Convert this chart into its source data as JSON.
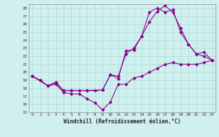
{
  "bg_color": "#cff0ee",
  "line_color": "#8b008b",
  "grid_color": "#b0ddd8",
  "xlim": [
    -0.5,
    23.5
  ],
  "ylim": [
    15,
    28.5
  ],
  "yticks": [
    15,
    16,
    17,
    18,
    19,
    20,
    21,
    22,
    23,
    24,
    25,
    26,
    27,
    28
  ],
  "xticks": [
    0,
    1,
    2,
    3,
    4,
    5,
    6,
    7,
    8,
    9,
    10,
    11,
    12,
    13,
    14,
    15,
    16,
    17,
    18,
    19,
    20,
    21,
    22,
    23
  ],
  "xlabel": "Windchill (Refroidissement éolien,°C)",
  "line1_x": [
    0,
    1,
    2,
    3,
    4,
    5,
    6,
    7,
    8,
    9,
    10,
    11,
    12,
    13,
    14,
    15,
    16,
    17,
    18,
    19,
    20,
    21,
    22,
    23
  ],
  "line1_y": [
    19.5,
    19.0,
    18.3,
    18.5,
    17.5,
    17.3,
    17.3,
    16.7,
    16.2,
    15.3,
    16.3,
    18.5,
    18.5,
    19.3,
    19.5,
    20.0,
    20.5,
    21.0,
    21.2,
    21.0,
    21.0,
    21.0,
    21.2,
    21.5
  ],
  "line2_x": [
    0,
    1,
    2,
    3,
    4,
    5,
    6,
    7,
    8,
    9,
    10,
    11,
    12,
    13,
    14,
    15,
    16,
    17,
    18,
    19,
    20,
    21,
    22,
    23
  ],
  "line2_y": [
    19.5,
    19.0,
    18.3,
    18.7,
    17.7,
    17.7,
    17.7,
    17.7,
    17.7,
    17.8,
    19.7,
    19.2,
    22.7,
    22.8,
    24.5,
    26.3,
    27.6,
    28.3,
    27.5,
    25.5,
    23.5,
    22.3,
    22.0,
    21.5
  ],
  "line3_x": [
    0,
    2,
    3,
    4,
    5,
    7,
    9,
    10,
    11,
    12,
    13,
    14,
    15,
    16,
    17,
    18,
    19,
    20,
    21,
    22,
    23
  ],
  "line3_y": [
    19.5,
    18.3,
    18.8,
    17.7,
    17.7,
    17.7,
    17.8,
    19.7,
    19.5,
    22.3,
    23.0,
    24.5,
    27.5,
    28.0,
    27.5,
    27.8,
    25.0,
    23.5,
    22.3,
    22.5,
    21.5
  ]
}
